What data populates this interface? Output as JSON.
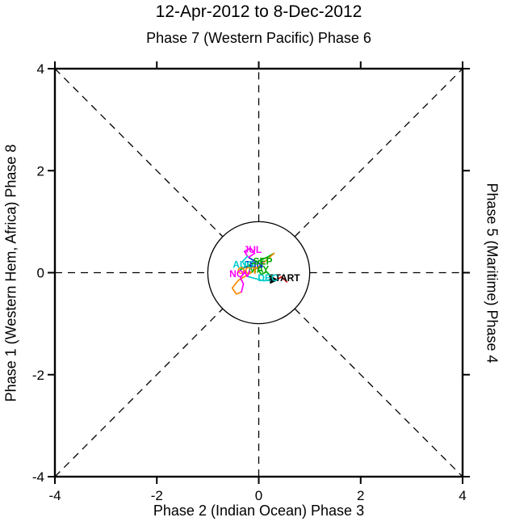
{
  "figure": {
    "title": "12-Apr-2012 to 8-Dec-2012",
    "top_label": "Phase 7 (Western Pacific) Phase 6",
    "left_label": "Phase 1 (Western Hem, Africa) Phase 8",
    "right_label": "Phase 5 (Maritime) Phase 4",
    "bottom_label": "Phase 2 (Indian Ocean) Phase 3"
  },
  "chart_data": {
    "type": "line",
    "title": "12-Apr-2012 to 8-Dec-2012",
    "subtitle": "Phase 7 (Western Pacific) Phase 6",
    "xlabel": "Phase 2 (Indian Ocean) Phase 3",
    "ylabel": "Phase 1 (Western Hem, Africa) Phase 8",
    "ylabel_right": "Phase 5 (Maritime) Phase 4",
    "xlim": [
      -4,
      4
    ],
    "ylim": [
      -4,
      4
    ],
    "xticks": [
      -4,
      -2,
      0,
      2,
      4
    ],
    "yticks": [
      -4,
      -2,
      0,
      2,
      4
    ],
    "grid": "dashed horizontal, vertical and diagonal guide lines clipped at unit circle",
    "unit_circle_radius": 1,
    "axis_color": "#000000",
    "description": "MJO RMM phase-space trajectory, weak amplitude (inside unit circle) from 12-Apr-2012 to 8-Dec-2012",
    "series": [
      {
        "month": "APR",
        "color": "#dd0000",
        "points": [
          [
            0.55,
            -0.18
          ],
          [
            0.45,
            -0.08
          ],
          [
            0.35,
            -0.14
          ],
          [
            0.25,
            -0.08
          ]
        ]
      },
      {
        "month": "MAY",
        "color": "#00aa00",
        "points": [
          [
            0.25,
            -0.08
          ],
          [
            0.15,
            0.02
          ],
          [
            0.05,
            -0.04
          ],
          [
            -0.02,
            0.08
          ],
          [
            0.06,
            0.14
          ]
        ]
      },
      {
        "month": "JUN",
        "color": "#0033cc",
        "points": [
          [
            0.06,
            0.14
          ],
          [
            -0.06,
            0.08
          ],
          [
            -0.16,
            0.14
          ],
          [
            -0.1,
            0.24
          ],
          [
            -0.2,
            0.3
          ]
        ]
      },
      {
        "month": "JUL",
        "color": "#ff00ff",
        "points": [
          [
            -0.2,
            0.3
          ],
          [
            -0.08,
            0.38
          ],
          [
            -0.16,
            0.48
          ],
          [
            -0.28,
            0.42
          ],
          [
            -0.22,
            0.32
          ]
        ]
      },
      {
        "month": "AUG",
        "color": "#00cccc",
        "points": [
          [
            -0.22,
            0.32
          ],
          [
            -0.32,
            0.22
          ],
          [
            -0.26,
            0.12
          ],
          [
            -0.36,
            0.06
          ]
        ]
      },
      {
        "month": "SEP",
        "color": "#00aa00",
        "points": [
          [
            -0.36,
            0.06
          ],
          [
            -0.2,
            0.14
          ],
          [
            -0.02,
            0.22
          ],
          [
            0.16,
            0.3
          ],
          [
            0.3,
            0.38
          ]
        ]
      },
      {
        "month": "OCT",
        "color": "#ff8800",
        "points": [
          [
            0.3,
            0.38
          ],
          [
            0.1,
            0.2
          ],
          [
            -0.15,
            0.0
          ],
          [
            -0.4,
            -0.15
          ],
          [
            -0.52,
            -0.3
          ],
          [
            -0.44,
            -0.42
          ],
          [
            -0.34,
            -0.38
          ]
        ]
      },
      {
        "month": "NOV",
        "color": "#ff00ff",
        "points": [
          [
            -0.34,
            -0.38
          ],
          [
            -0.3,
            -0.22
          ],
          [
            -0.36,
            -0.1
          ],
          [
            -0.28,
            0.0
          ],
          [
            -0.2,
            -0.08
          ]
        ]
      },
      {
        "month": "DEC",
        "color": "#00cccc",
        "points": [
          [
            -0.2,
            -0.08
          ],
          [
            -0.05,
            -0.12
          ],
          [
            0.1,
            -0.16
          ],
          [
            0.22,
            -0.14
          ]
        ]
      }
    ],
    "arrow_end": [
      0.25,
      -0.14
    ],
    "labels": [
      {
        "text": "START",
        "x": 0.5,
        "y": -0.1,
        "color": "#000000"
      },
      {
        "text": "MAY",
        "x": 0.0,
        "y": 0.06,
        "color": "#00aa00"
      },
      {
        "text": "JUN",
        "x": -0.1,
        "y": 0.16,
        "color": "#0033cc"
      },
      {
        "text": "JUL",
        "x": -0.12,
        "y": 0.45,
        "color": "#ff00ff"
      },
      {
        "text": "AUG",
        "x": -0.3,
        "y": 0.16,
        "color": "#00cccc"
      },
      {
        "text": "SEP",
        "x": 0.08,
        "y": 0.22,
        "color": "#00aa00"
      },
      {
        "text": "OCT",
        "x": -0.22,
        "y": 0.04,
        "color": "#ff8800"
      },
      {
        "text": "NOV",
        "x": -0.37,
        "y": -0.02,
        "color": "#ff00ff"
      },
      {
        "text": "DEC",
        "x": 0.18,
        "y": -0.1,
        "color": "#00cccc"
      }
    ]
  }
}
